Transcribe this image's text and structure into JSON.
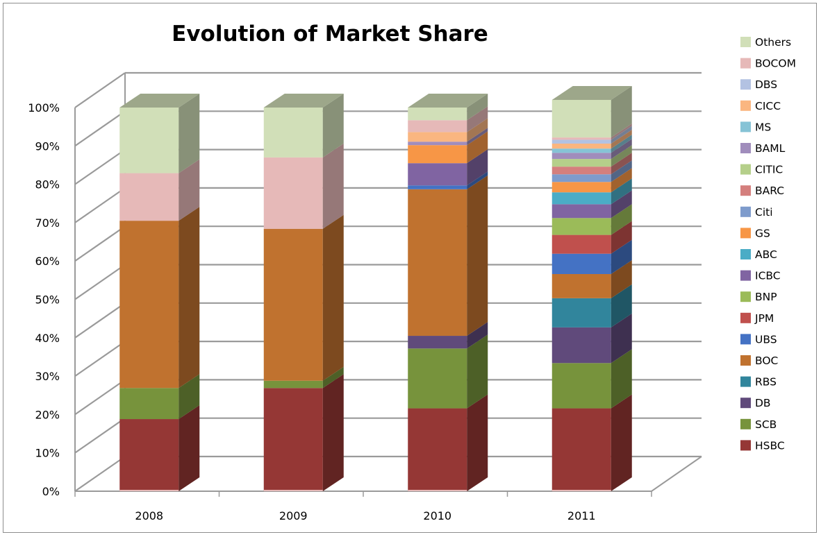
{
  "chart_data": {
    "type": "bar",
    "stacked": true,
    "three_d": true,
    "title": "Evolution of Market Share",
    "xlabel": "",
    "ylabel": "",
    "categories": [
      "2008",
      "2009",
      "2010",
      "2011"
    ],
    "y_ticks": [
      "0%",
      "10%",
      "20%",
      "30%",
      "40%",
      "50%",
      "60%",
      "70%",
      "80%",
      "90%",
      "100%"
    ],
    "ylim": [
      0,
      100
    ],
    "grid": true,
    "legend_position": "right",
    "series": [
      {
        "name": "HSBC",
        "color": "#953735",
        "values": [
          18.8,
          26.9,
          21.6,
          21.6
        ]
      },
      {
        "name": "SCB",
        "color": "#77933C",
        "values": [
          8.1,
          1.9,
          15.6,
          11.8
        ]
      },
      {
        "name": "DB",
        "color": "#604A7B",
        "values": [
          0,
          0,
          3.3,
          9.3
        ]
      },
      {
        "name": "RBS",
        "color": "#31859C",
        "values": [
          0,
          0,
          0,
          7.6
        ]
      },
      {
        "name": "BOC",
        "color": "#C0722F",
        "values": [
          43.6,
          39.6,
          38.2,
          6.3
        ]
      },
      {
        "name": "UBS",
        "color": "#4472C4",
        "values": [
          0,
          0,
          1.0,
          5.3
        ]
      },
      {
        "name": "JPM",
        "color": "#C0504D",
        "values": [
          0,
          0,
          0,
          4.9
        ]
      },
      {
        "name": "BNP",
        "color": "#9BBB59",
        "values": [
          0,
          0,
          0,
          4.4
        ]
      },
      {
        "name": "ICBC",
        "color": "#8064A2",
        "values": [
          0,
          0,
          5.8,
          3.6
        ]
      },
      {
        "name": "ABC",
        "color": "#4BACC6",
        "values": [
          0,
          0,
          0,
          3.1
        ]
      },
      {
        "name": "GS",
        "color": "#F79646",
        "values": [
          0,
          0,
          4.7,
          2.7
        ]
      },
      {
        "name": "Citi",
        "color": "#7E9BCC",
        "values": [
          0,
          0,
          0,
          2.0
        ]
      },
      {
        "name": "BARC",
        "color": "#D47F7D",
        "values": [
          0,
          0,
          0,
          2.0
        ]
      },
      {
        "name": "CITIC",
        "color": "#B5CF8A",
        "values": [
          0,
          0,
          0,
          2.0
        ]
      },
      {
        "name": "BAML",
        "color": "#A08DBC",
        "values": [
          0,
          0,
          0.9,
          1.6
        ]
      },
      {
        "name": "MS",
        "color": "#86C3D6",
        "values": [
          0,
          0,
          0,
          1.1
        ]
      },
      {
        "name": "CICC",
        "color": "#FAB680",
        "values": [
          0,
          0,
          2.5,
          1.3
        ]
      },
      {
        "name": "DBS",
        "color": "#B3C2E2",
        "values": [
          0,
          0,
          0,
          1.0
        ]
      },
      {
        "name": "BOCOM",
        "color": "#E6B9B8",
        "values": [
          12.4,
          18.6,
          3.1,
          0.6
        ]
      },
      {
        "name": "Others",
        "color": "#D1DFB8",
        "values": [
          17.1,
          13.0,
          3.3,
          9.8
        ]
      }
    ]
  }
}
